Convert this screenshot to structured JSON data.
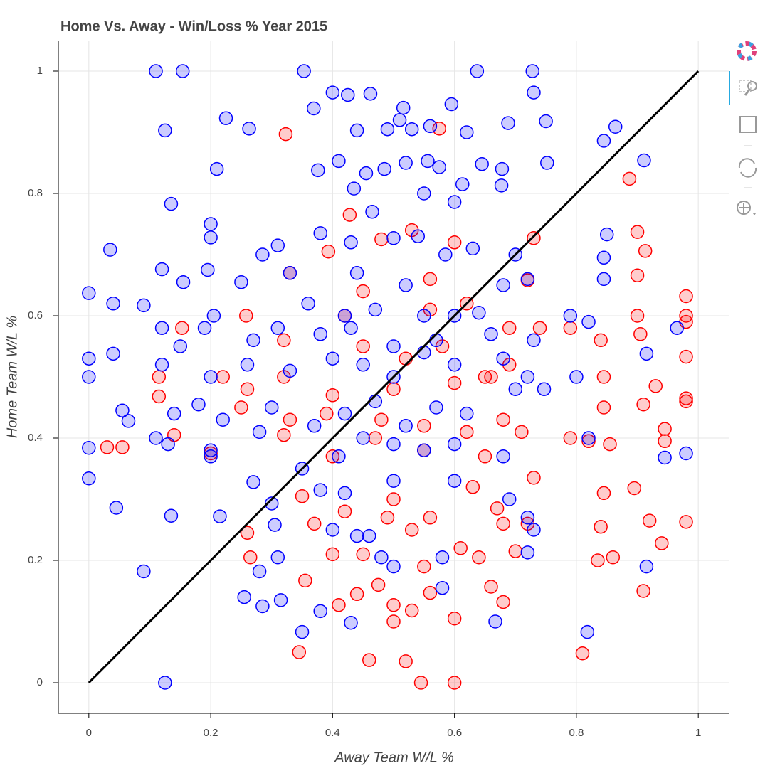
{
  "chart_data": {
    "type": "scatter",
    "title": "Home Vs. Away - Win/Loss % Year 2015",
    "x_label": "Away Team W/L %",
    "y_label": "Home Team W/L %",
    "xlim": [
      -0.05,
      1.05
    ],
    "ylim": [
      -0.05,
      1.05
    ],
    "xticks": [
      0,
      0.2,
      0.4,
      0.6,
      0.8,
      1
    ],
    "yticks": [
      0,
      0.2,
      0.4,
      0.6,
      0.8,
      1
    ],
    "grid": true,
    "series": [
      {
        "color": "blue",
        "x": [
          0.11,
          0.154,
          0.353,
          0.637,
          0.728,
          0.125,
          0.225,
          0.263,
          0.369,
          0.4,
          0.425,
          0.462,
          0.516,
          0.595,
          0.73,
          0.75,
          0.845,
          0.864,
          0.688,
          0.62,
          0.44,
          0.49,
          0.51,
          0.53,
          0.56,
          0.21,
          0.376,
          0.41,
          0.455,
          0.485,
          0.52,
          0.556,
          0.575,
          0.613,
          0.645,
          0.678,
          0.752,
          0.911,
          0.135,
          0.2,
          0.435,
          0.465,
          0.55,
          0.6,
          0.677,
          0.035,
          0.2,
          0.285,
          0.31,
          0.38,
          0.43,
          0.5,
          0.54,
          0.585,
          0.63,
          0.7,
          0.85,
          0.12,
          0.155,
          0.195,
          0.25,
          0.33,
          0.44,
          0.52,
          0.68,
          0.72,
          0.845,
          0.845,
          0,
          0.04,
          0.09,
          0.205,
          0.36,
          0.42,
          0.47,
          0.55,
          0.6,
          0.64,
          0.79,
          0.965,
          0.12,
          0.15,
          0.19,
          0.27,
          0.31,
          0.38,
          0.43,
          0.5,
          0.57,
          0.66,
          0.73,
          0.82,
          0,
          0.04,
          0.12,
          0.2,
          0.26,
          0.33,
          0.4,
          0.45,
          0.5,
          0.55,
          0.6,
          0.68,
          0.72,
          0.8,
          0.915,
          0,
          0.11,
          0.14,
          0.055,
          0.065,
          0.18,
          0.22,
          0.3,
          0.37,
          0.42,
          0.47,
          0.52,
          0.57,
          0.62,
          0.7,
          0.747,
          0,
          0.13,
          0.2,
          0.28,
          0.35,
          0.41,
          0.45,
          0.5,
          0.55,
          0.6,
          0.68,
          0.82,
          0.98,
          0.945,
          0,
          0.045,
          0.135,
          0.215,
          0.27,
          0.3,
          0.38,
          0.42,
          0.5,
          0.6,
          0.69,
          0.72,
          0.73,
          0.09,
          0.2,
          0.28,
          0.305,
          0.31,
          0.4,
          0.44,
          0.46,
          0.48,
          0.5,
          0.58,
          0.58,
          0.72,
          0.915,
          0.255,
          0.285,
          0.315,
          0.38,
          0.43,
          0.667,
          0.35,
          0.818,
          0.125
        ],
        "y": [
          1,
          1,
          1,
          1,
          1,
          0.903,
          0.923,
          0.906,
          0.939,
          0.965,
          0.961,
          0.963,
          0.94,
          0.946,
          0.965,
          0.918,
          0.886,
          0.909,
          0.915,
          0.9,
          0.903,
          0.905,
          0.92,
          0.905,
          0.91,
          0.84,
          0.838,
          0.853,
          0.833,
          0.84,
          0.85,
          0.853,
          0.843,
          0.815,
          0.848,
          0.84,
          0.85,
          0.854,
          0.783,
          0.75,
          0.808,
          0.77,
          0.8,
          0.786,
          0.813,
          0.708,
          0.728,
          0.7,
          0.715,
          0.735,
          0.72,
          0.727,
          0.73,
          0.7,
          0.71,
          0.7,
          0.733,
          0.676,
          0.655,
          0.675,
          0.655,
          0.67,
          0.67,
          0.65,
          0.65,
          0.66,
          0.695,
          0.66,
          0.637,
          0.62,
          0.617,
          0.6,
          0.62,
          0.6,
          0.61,
          0.6,
          0.6,
          0.605,
          0.6,
          0.58,
          0.58,
          0.55,
          0.58,
          0.56,
          0.58,
          0.57,
          0.58,
          0.55,
          0.56,
          0.57,
          0.56,
          0.59,
          0.53,
          0.538,
          0.52,
          0.5,
          0.52,
          0.51,
          0.53,
          0.52,
          0.5,
          0.54,
          0.52,
          0.53,
          0.5,
          0.5,
          0.538,
          0.5,
          0.4,
          0.44,
          0.445,
          0.428,
          0.455,
          0.43,
          0.45,
          0.42,
          0.44,
          0.46,
          0.42,
          0.45,
          0.44,
          0.48,
          0.48,
          0.384,
          0.39,
          0.38,
          0.41,
          0.35,
          0.37,
          0.4,
          0.39,
          0.38,
          0.39,
          0.37,
          0.4,
          0.375,
          0.368,
          0.334,
          0.286,
          0.273,
          0.272,
          0.328,
          0.293,
          0.315,
          0.31,
          0.33,
          0.33,
          0.3,
          0.27,
          0.25,
          0.182,
          0.37,
          0.182,
          0.258,
          0.205,
          0.25,
          0.24,
          0.24,
          0.205,
          0.19,
          0.155,
          0.205,
          0.213,
          0.19,
          0.14,
          0.125,
          0.135,
          0.117,
          0.098,
          0.1,
          0.083,
          0.083,
          0
        ]
      },
      {
        "color": "red",
        "x": [
          0.323,
          0.575,
          0.887,
          0.428,
          0.53,
          0.9,
          0.73,
          0.913,
          0.393,
          0.6,
          0.48,
          0.33,
          0.45,
          0.56,
          0.9,
          0.72,
          0.42,
          0.56,
          0.62,
          0.69,
          0.74,
          0.79,
          0.9,
          0.98,
          0.98,
          0.98,
          0.153,
          0.258,
          0.32,
          0.45,
          0.52,
          0.58,
          0.65,
          0.69,
          0.84,
          0.905,
          0.98,
          0.115,
          0.22,
          0.26,
          0.32,
          0.4,
          0.5,
          0.6,
          0.66,
          0.845,
          0.93,
          0.98,
          0.98,
          0.115,
          0.25,
          0.33,
          0.39,
          0.48,
          0.55,
          0.62,
          0.68,
          0.845,
          0.91,
          0.055,
          0.03,
          0.14,
          0.2,
          0.32,
          0.4,
          0.47,
          0.55,
          0.65,
          0.71,
          0.79,
          0.82,
          0.855,
          0.945,
          0.945,
          0.35,
          0.42,
          0.5,
          0.56,
          0.63,
          0.67,
          0.73,
          0.845,
          0.895,
          0.26,
          0.37,
          0.49,
          0.53,
          0.61,
          0.68,
          0.72,
          0.84,
          0.92,
          0.98,
          0.265,
          0.4,
          0.45,
          0.55,
          0.64,
          0.7,
          0.835,
          0.86,
          0.94,
          0.355,
          0.44,
          0.475,
          0.5,
          0.53,
          0.56,
          0.6,
          0.66,
          0.68,
          0.91,
          0.345,
          0.46,
          0.52,
          0.81,
          0.545,
          0.6,
          0.41,
          0.5
        ],
        "y": [
          0.897,
          0.906,
          0.824,
          0.765,
          0.74,
          0.737,
          0.727,
          0.706,
          0.705,
          0.72,
          0.725,
          0.67,
          0.64,
          0.66,
          0.666,
          0.658,
          0.6,
          0.61,
          0.62,
          0.58,
          0.58,
          0.58,
          0.6,
          0.632,
          0.6,
          0.59,
          0.58,
          0.6,
          0.56,
          0.55,
          0.53,
          0.55,
          0.5,
          0.52,
          0.56,
          0.57,
          0.533,
          0.5,
          0.5,
          0.48,
          0.5,
          0.47,
          0.48,
          0.49,
          0.5,
          0.5,
          0.485,
          0.465,
          0.46,
          0.468,
          0.45,
          0.43,
          0.44,
          0.43,
          0.42,
          0.41,
          0.43,
          0.45,
          0.455,
          0.385,
          0.385,
          0.405,
          0.375,
          0.405,
          0.37,
          0.4,
          0.38,
          0.37,
          0.41,
          0.4,
          0.395,
          0.39,
          0.395,
          0.415,
          0.305,
          0.28,
          0.3,
          0.27,
          0.32,
          0.285,
          0.335,
          0.31,
          0.318,
          0.245,
          0.26,
          0.27,
          0.25,
          0.22,
          0.26,
          0.26,
          0.255,
          0.265,
          0.263,
          0.205,
          0.21,
          0.21,
          0.19,
          0.205,
          0.215,
          0.2,
          0.205,
          0.228,
          0.167,
          0.145,
          0.16,
          0.127,
          0.118,
          0.147,
          0.105,
          0.157,
          0.132,
          0.15,
          0.05,
          0.037,
          0.035,
          0.048,
          0,
          0,
          0.127,
          0.1
        ]
      },
      {
        "type": "line",
        "color": "black",
        "x": [
          0,
          1
        ],
        "y": [
          0,
          1
        ]
      }
    ]
  }
}
